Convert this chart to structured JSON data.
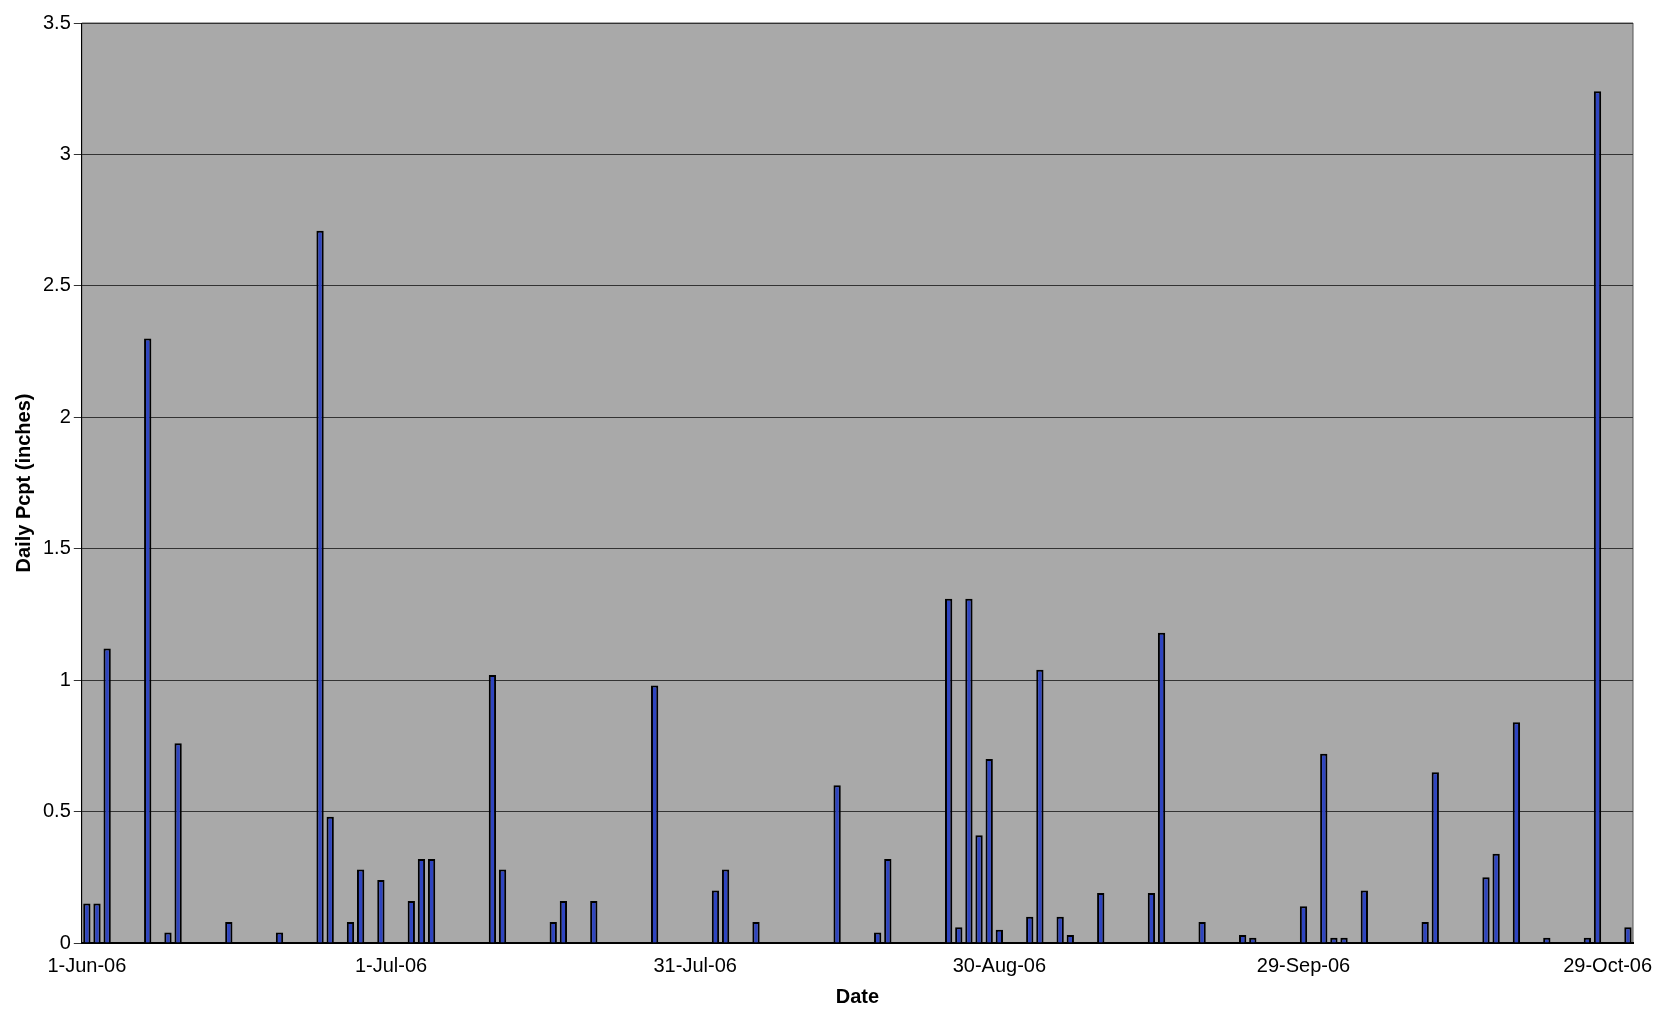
{
  "chart_data": {
    "type": "bar",
    "xlabel": "Date",
    "ylabel": "Daily Pcpt (inches)",
    "x": [
      "2006-06-01",
      "2006-06-02",
      "2006-06-03",
      "2006-06-07",
      "2006-06-09",
      "2006-06-10",
      "2006-06-15",
      "2006-06-20",
      "2006-06-24",
      "2006-06-25",
      "2006-06-27",
      "2006-06-28",
      "2006-06-30",
      "2006-07-03",
      "2006-07-04",
      "2006-07-05",
      "2006-07-11",
      "2006-07-12",
      "2006-07-17",
      "2006-07-18",
      "2006-07-21",
      "2006-07-27",
      "2006-08-02",
      "2006-08-03",
      "2006-08-06",
      "2006-08-14",
      "2006-08-18",
      "2006-08-19",
      "2006-08-25",
      "2006-08-26",
      "2006-08-27",
      "2006-08-28",
      "2006-08-29",
      "2006-08-30",
      "2006-09-02",
      "2006-09-03",
      "2006-09-05",
      "2006-09-06",
      "2006-09-09",
      "2006-09-14",
      "2006-09-15",
      "2006-09-19",
      "2006-09-23",
      "2006-09-24",
      "2006-09-29",
      "2006-10-01",
      "2006-10-02",
      "2006-10-03",
      "2006-10-05",
      "2006-10-11",
      "2006-10-12",
      "2006-10-17",
      "2006-10-18",
      "2006-10-20",
      "2006-10-23",
      "2006-10-27",
      "2006-10-28",
      "2006-10-31"
    ],
    "values": [
      0.15,
      0.15,
      1.12,
      2.3,
      0.04,
      0.76,
      0.08,
      0.04,
      2.71,
      0.48,
      0.08,
      0.28,
      0.24,
      0.16,
      0.32,
      0.32,
      1.02,
      0.28,
      0.08,
      0.16,
      0.16,
      0.98,
      0.2,
      0.28,
      0.08,
      0.6,
      0.04,
      0.32,
      1.31,
      0.06,
      1.31,
      0.41,
      0.7,
      0.05,
      0.1,
      1.04,
      0.1,
      0.03,
      0.19,
      0.19,
      1.18,
      0.08,
      0.03,
      0.02,
      0.14,
      0.72,
      0.02,
      0.02,
      0.2,
      0.08,
      0.65,
      0.25,
      0.34,
      0.84,
      0.02,
      0.02,
      3.24,
      0.06
    ],
    "color": "#2f45c0",
    "xlim": [
      "2006-05-31T12:00",
      "2006-10-31T12:00"
    ],
    "xticks": [
      {
        "value": "2006-06-01",
        "label": "1-Jun-06"
      },
      {
        "value": "2006-07-01",
        "label": "1-Jul-06"
      },
      {
        "value": "2006-07-31",
        "label": "31-Jul-06"
      },
      {
        "value": "2006-08-30",
        "label": "30-Aug-06"
      },
      {
        "value": "2006-09-29",
        "label": "29-Sep-06"
      },
      {
        "value": "2006-10-29",
        "label": "29-Oct-06"
      }
    ],
    "ylim": [
      0,
      3.5
    ],
    "yticks": [
      0,
      0.5,
      1,
      1.5,
      2,
      2.5,
      3,
      3.5
    ],
    "grid": "y"
  }
}
